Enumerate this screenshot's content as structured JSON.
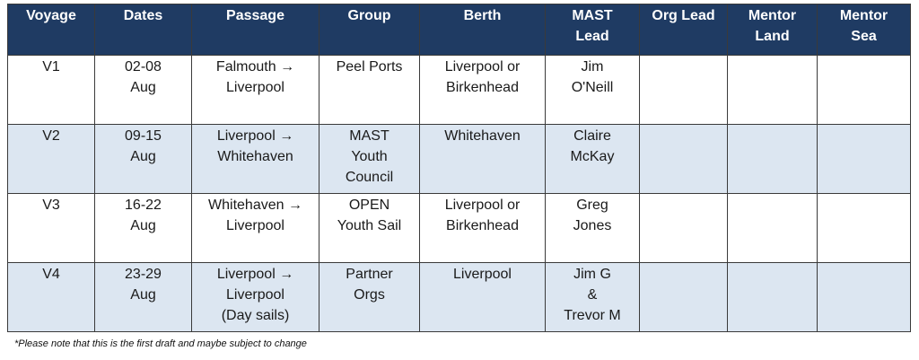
{
  "table": {
    "headers": [
      [
        "Voyage"
      ],
      [
        "Dates"
      ],
      [
        "Passage"
      ],
      [
        "Group"
      ],
      [
        "Berth"
      ],
      [
        "MAST",
        "Lead"
      ],
      [
        "Org Lead"
      ],
      [
        "Mentor",
        "Land"
      ],
      [
        "Mentor",
        "Sea"
      ]
    ],
    "rows": [
      [
        [
          "V1"
        ],
        [
          "02-08",
          "Aug"
        ],
        [
          "Falmouth →",
          "Liverpool"
        ],
        [
          "Peel Ports"
        ],
        [
          "Liverpool or",
          "Birkenhead"
        ],
        [
          "Jim",
          "O'Neill"
        ]
      ],
      [
        [
          "V2"
        ],
        [
          "09-15",
          "Aug"
        ],
        [
          "Liverpool →",
          "Whitehaven"
        ],
        [
          "MAST",
          "Youth",
          "Council"
        ],
        [
          "Whitehaven"
        ],
        [
          "Claire",
          "McKay"
        ]
      ],
      [
        [
          "V3"
        ],
        [
          "16-22",
          "Aug"
        ],
        [
          "Whitehaven →",
          "Liverpool"
        ],
        [
          "OPEN",
          "Youth Sail"
        ],
        [
          "Liverpool or",
          "Birkenhead"
        ],
        [
          "Greg",
          "Jones"
        ]
      ],
      [
        [
          "V4"
        ],
        [
          "23-29",
          "Aug"
        ],
        [
          "Liverpool →",
          "Liverpool",
          "(Day sails)"
        ],
        [
          "Partner",
          "Orgs"
        ],
        [
          "Liverpool"
        ],
        [
          "Jim G",
          "&",
          "Trevor M"
        ]
      ]
    ]
  },
  "footnote": "*Please note that this is the first draft and maybe subject to change"
}
